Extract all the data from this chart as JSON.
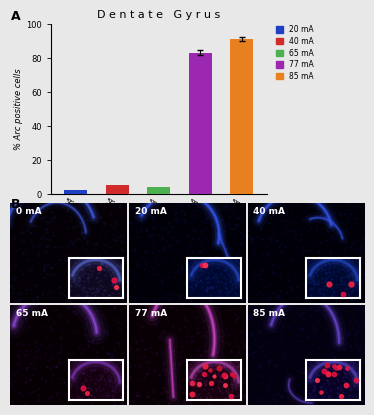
{
  "title": "D e n t a t e   G y r u s",
  "ylabel": "% Arc positive cells",
  "categories": [
    "20 mA",
    "40 mA",
    "65 mA",
    "77 mA",
    "85 mA"
  ],
  "values": [
    2.0,
    5.0,
    4.0,
    83.0,
    91.0
  ],
  "errors": [
    0.5,
    0.8,
    0.6,
    1.5,
    1.2
  ],
  "bar_colors": [
    "#1f3fc4",
    "#d12b2b",
    "#4caf50",
    "#9c27b0",
    "#e88020"
  ],
  "ylim": [
    0,
    100
  ],
  "yticks": [
    0,
    20,
    40,
    60,
    80,
    100
  ],
  "legend_labels": [
    "20 mA",
    "40 mA",
    "65 mA",
    "77 mA",
    "85 mA"
  ],
  "legend_colors": [
    "#1f3fc4",
    "#d12b2b",
    "#4caf50",
    "#9c27b0",
    "#e88020"
  ],
  "panel_A_label": "A",
  "panel_B_label": "B",
  "bg_color": "#e8e8e8",
  "micro_labels": [
    "0 mA",
    "20 mA",
    "40 mA",
    "65 mA",
    "77 mA",
    "85 mA"
  ]
}
